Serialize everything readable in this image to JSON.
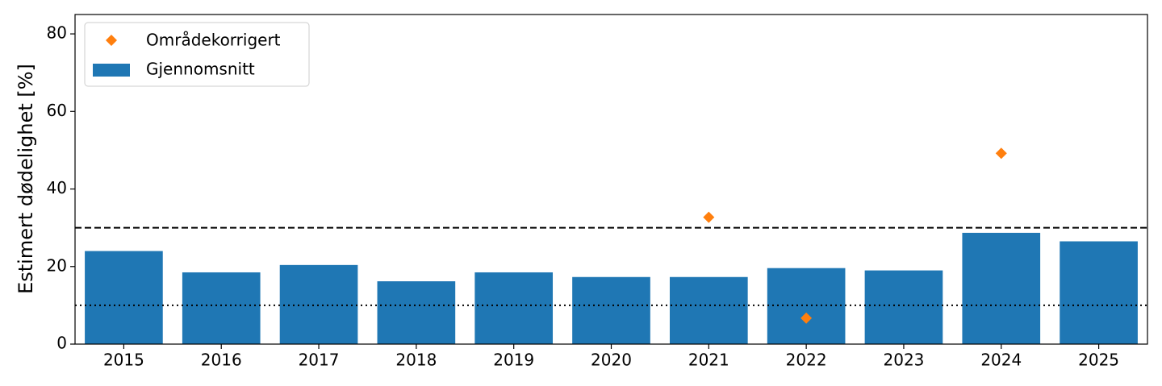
{
  "chart_data": {
    "type": "bar",
    "y_label": "Estimert dødelighet [%]",
    "categories": [
      "2015",
      "2016",
      "2017",
      "2018",
      "2019",
      "2020",
      "2021",
      "2022",
      "2023",
      "2024",
      "2025"
    ],
    "series": [
      {
        "name": "Områdekorrigert",
        "type": "scatter",
        "marker": "diamond",
        "color": "#ff7f0e",
        "values": [
          null,
          null,
          null,
          null,
          null,
          null,
          32.7,
          6.7,
          null,
          49.2,
          null
        ]
      },
      {
        "name": "Gjennomsnitt",
        "type": "bar",
        "color": "#1f77b4",
        "values": [
          24,
          18.5,
          20.4,
          16.2,
          18.5,
          17.3,
          17.3,
          19.6,
          19,
          28.7,
          26.5
        ]
      }
    ],
    "reference_lines": [
      {
        "value": 30,
        "style": "dashed"
      },
      {
        "value": 10,
        "style": "dotted"
      }
    ],
    "ylim": [
      0,
      85
    ],
    "yticks": [
      0,
      20,
      40,
      60,
      80
    ],
    "legend": "upper left"
  }
}
